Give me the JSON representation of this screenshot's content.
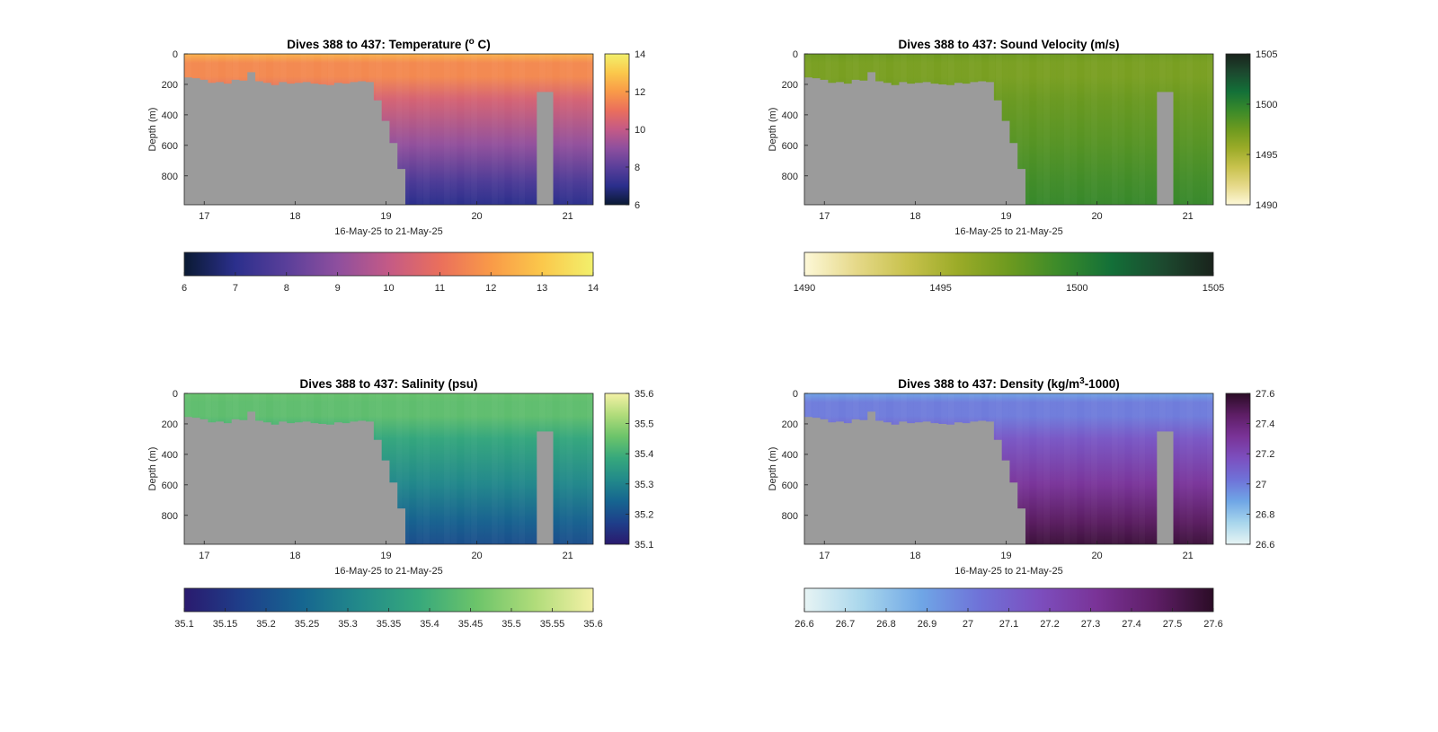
{
  "chart_data": [
    {
      "type": "heatmap",
      "title": "Dives 388 to 437: Temperature (° C)",
      "title_main": "Dives 388 to 437: Temperature (",
      "title_sup": "o",
      "title_end": " C)",
      "xlabel": "16-May-25 to 21-May-25",
      "ylabel": "Depth (m)",
      "x_ticks": [
        "17",
        "18",
        "19",
        "20",
        "21"
      ],
      "x_tick_values": [
        17,
        18,
        19,
        20,
        21
      ],
      "xlim": [
        16.78,
        21.28
      ],
      "y_ticks": [
        "0",
        "200",
        "400",
        "600",
        "800"
      ],
      "y_tick_values": [
        0,
        200,
        400,
        600,
        800
      ],
      "ylim": [
        0,
        990
      ],
      "y_reversed": true,
      "colorbar_ticks": [
        "6",
        "8",
        "10",
        "12",
        "14"
      ],
      "colorbar_tick_values": [
        6,
        8,
        10,
        12,
        14
      ],
      "colorbar_range": [
        6,
        14
      ],
      "colormap": [
        "#0a1a33",
        "#2b2f8c",
        "#5a3f9a",
        "#8e4f9e",
        "#c45a86",
        "#ea6f5c",
        "#f99a48",
        "#fbc84b",
        "#f2f06c"
      ],
      "hcolorbar_ticks": [
        "6",
        "7",
        "8",
        "9",
        "10",
        "11",
        "12",
        "13",
        "14"
      ],
      "hcolorbar_tick_values": [
        6,
        7,
        8,
        9,
        10,
        11,
        12,
        13,
        14
      ],
      "surface_value": 12.5,
      "bottom_value": 7.0,
      "mixed_layer_value": 11.6
    },
    {
      "type": "heatmap",
      "title": "Dives 388 to 437: Sound Velocity (m/s)",
      "title_main": "Dives 388 to 437: Sound Velocity (m/s)",
      "title_sup": "",
      "title_end": "",
      "xlabel": "16-May-25 to 21-May-25",
      "ylabel": "Depth (m)",
      "x_ticks": [
        "17",
        "18",
        "19",
        "20",
        "21"
      ],
      "x_tick_values": [
        17,
        18,
        19,
        20,
        21
      ],
      "xlim": [
        16.78,
        21.28
      ],
      "y_ticks": [
        "0",
        "200",
        "400",
        "600",
        "800"
      ],
      "y_tick_values": [
        0,
        200,
        400,
        600,
        800
      ],
      "ylim": [
        0,
        990
      ],
      "y_reversed": true,
      "colorbar_ticks": [
        "1490",
        "1495",
        "1500",
        "1505"
      ],
      "colorbar_tick_values": [
        1490,
        1495,
        1500,
        1505
      ],
      "colorbar_range": [
        1490,
        1505
      ],
      "colormap": [
        "#fdf8d8",
        "#e6d98a",
        "#c8c24d",
        "#9bab28",
        "#6d9a1f",
        "#3a8a2a",
        "#137038",
        "#1c4a2f",
        "#1a231c"
      ],
      "hcolorbar_ticks": [
        "1490",
        "1495",
        "1500",
        "1505"
      ],
      "hcolorbar_tick_values": [
        1490,
        1495,
        1500,
        1505
      ],
      "surface_value": 1497.5,
      "bottom_value": 1499.5,
      "mixed_layer_value": 1497.0
    },
    {
      "type": "heatmap",
      "title": "Dives 388 to 437: Salinity (psu)",
      "title_main": "Dives 388 to 437: Salinity (psu)",
      "title_sup": "",
      "title_end": "",
      "xlabel": "16-May-25 to 21-May-25",
      "ylabel": "Depth (m)",
      "x_ticks": [
        "17",
        "18",
        "19",
        "20",
        "21"
      ],
      "x_tick_values": [
        17,
        18,
        19,
        20,
        21
      ],
      "xlim": [
        16.78,
        21.28
      ],
      "y_ticks": [
        "0",
        "200",
        "400",
        "600",
        "800"
      ],
      "y_tick_values": [
        0,
        200,
        400,
        600,
        800
      ],
      "ylim": [
        0,
        990
      ],
      "y_reversed": true,
      "colorbar_ticks": [
        "35.1",
        "35.2",
        "35.3",
        "35.4",
        "35.5",
        "35.6"
      ],
      "colorbar_tick_values": [
        35.1,
        35.2,
        35.3,
        35.4,
        35.5,
        35.6
      ],
      "colorbar_range": [
        35.1,
        35.6
      ],
      "colormap": [
        "#2a1a6e",
        "#1e3f8a",
        "#166590",
        "#228a8a",
        "#36a87c",
        "#6cc46a",
        "#b0dc7a",
        "#f4f1a6"
      ],
      "hcolorbar_ticks": [
        "35.1",
        "35.15",
        "35.2",
        "35.25",
        "35.3",
        "35.35",
        "35.4",
        "35.45",
        "35.5",
        "35.55",
        "35.6"
      ],
      "hcolorbar_tick_values": [
        35.1,
        35.15,
        35.2,
        35.25,
        35.3,
        35.35,
        35.4,
        35.45,
        35.5,
        35.55,
        35.6
      ],
      "surface_value": 35.45,
      "bottom_value": 35.2,
      "mixed_layer_value": 35.44
    },
    {
      "type": "heatmap",
      "title": "Dives 388 to 437: Density (kg/m³-1000)",
      "title_main": "Dives 388 to 437: Density (kg/m",
      "title_sup": "3",
      "title_end": "-1000)",
      "xlabel": "16-May-25 to 21-May-25",
      "ylabel": "Depth (m)",
      "x_ticks": [
        "17",
        "18",
        "19",
        "20",
        "21"
      ],
      "x_tick_values": [
        17,
        18,
        19,
        20,
        21
      ],
      "xlim": [
        16.78,
        21.28
      ],
      "y_ticks": [
        "0",
        "200",
        "400",
        "600",
        "800"
      ],
      "y_tick_values": [
        0,
        200,
        400,
        600,
        800
      ],
      "ylim": [
        0,
        990
      ],
      "y_reversed": true,
      "colorbar_ticks": [
        "26.6",
        "26.8",
        "27",
        "27.2",
        "27.4",
        "27.6"
      ],
      "colorbar_tick_values": [
        26.6,
        26.8,
        27,
        27.2,
        27.4,
        27.6
      ],
      "colorbar_range": [
        26.6,
        27.6
      ],
      "colormap": [
        "#e7f4f4",
        "#a8d6ec",
        "#6fa6e6",
        "#6f72d8",
        "#7c4fbf",
        "#7a3397",
        "#5e1e66",
        "#2b0c26"
      ],
      "hcolorbar_ticks": [
        "26.6",
        "26.7",
        "26.8",
        "26.9",
        "27",
        "27.1",
        "27.2",
        "27.3",
        "27.4",
        "27.5",
        "27.6"
      ],
      "hcolorbar_tick_values": [
        26.6,
        26.7,
        26.8,
        26.9,
        27,
        27.1,
        27.2,
        27.3,
        27.4,
        27.5,
        27.6
      ],
      "surface_value": 26.9,
      "bottom_value": 27.55,
      "mixed_layer_value": 27.0
    }
  ],
  "shared_profile": {
    "no_data_color": "#9b9b9b",
    "shallow_bottom_depth_m": [
      155,
      160,
      170,
      190,
      185,
      195,
      170,
      175,
      120,
      180,
      190,
      205,
      185,
      195,
      190,
      185,
      195,
      200,
      205,
      190,
      195,
      185,
      180,
      185,
      305,
      440,
      585,
      755,
      990
    ],
    "shallow_bottom_x_start": 16.78,
    "shallow_bottom_x_end": 19.3,
    "gap_x": [
      20.66,
      20.84
    ],
    "gap_bottom_depth_m": 250
  }
}
